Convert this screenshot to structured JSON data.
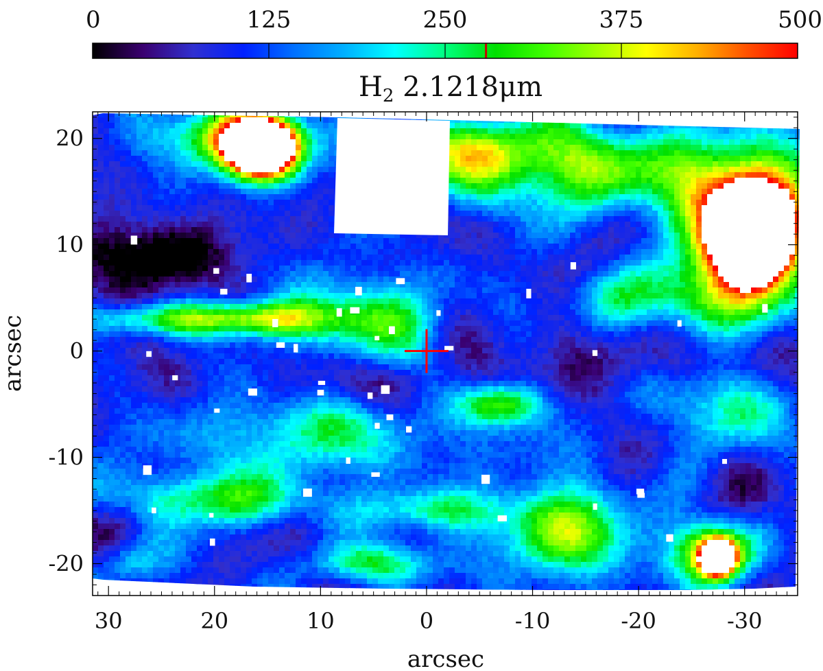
{
  "chart_data": {
    "type": "heatmap",
    "title": "H",
    "title_subscript": "2",
    "title_suffix": " 2.1218μm",
    "xlabel": "arcsec",
    "ylabel": "arcsec",
    "xlim": [
      31.5,
      -35
    ],
    "ylim": [
      -23,
      22.5
    ],
    "x_ticks": [
      30,
      20,
      10,
      0,
      -10,
      -20,
      -30
    ],
    "x_tick_labels": [
      "30",
      "20",
      "10",
      "0",
      "-10",
      "-20",
      "-30"
    ],
    "y_ticks": [
      20,
      10,
      0,
      -10,
      -20
    ],
    "y_tick_labels": [
      "20",
      "10",
      "0",
      "-10",
      "-20"
    ],
    "colorbar": {
      "range": [
        0,
        500
      ],
      "ticks": [
        0,
        125,
        250,
        375,
        500
      ],
      "tick_labels": [
        "0",
        "125",
        "250",
        "375",
        "500"
      ],
      "colormap": [
        "#000000",
        "#3a0070",
        "#3030d0",
        "#0020ff",
        "#0070ff",
        "#00b0ff",
        "#00ffff",
        "#00ff80",
        "#00e000",
        "#40ff00",
        "#a0ff00",
        "#ffff00",
        "#ffb000",
        "#ff5000",
        "#ff0000"
      ],
      "marker_value": 279
    },
    "marker": {
      "type": "cross",
      "x": 0,
      "y": 0,
      "color": "#ff0000"
    },
    "saturated_color": "#ffffff",
    "masked_region": {
      "x": [
        8.8,
        -1.8
      ],
      "y": [
        10.7,
        22.5
      ]
    },
    "emission_features": [
      {
        "x": 17,
        "y": 20,
        "sx": 6,
        "sy": 3,
        "v": 360
      },
      {
        "x": 15.5,
        "y": 19,
        "sx": 3,
        "sy": 2.5,
        "v": 700
      },
      {
        "x": -30,
        "y": 12,
        "sx": 6,
        "sy": 7,
        "v": 420
      },
      {
        "x": -31,
        "y": 11,
        "sx": 3.5,
        "sy": 4,
        "v": 650
      },
      {
        "x": -15,
        "y": 17,
        "sx": 14,
        "sy": 4,
        "v": 210
      },
      {
        "x": -5,
        "y": 19,
        "sx": 8,
        "sy": 3,
        "v": 180
      },
      {
        "x": 22,
        "y": 3,
        "sx": 12,
        "sy": 1.5,
        "v": 200
      },
      {
        "x": 15,
        "y": 3,
        "sx": 5,
        "sy": 2,
        "v": 170
      },
      {
        "x": 5,
        "y": 3,
        "sx": 6,
        "sy": 4,
        "v": 170
      },
      {
        "x": -13,
        "y": -17,
        "sx": 6,
        "sy": 4,
        "v": 240
      },
      {
        "x": -27,
        "y": -19,
        "sx": 4,
        "sy": 3,
        "v": 330
      },
      {
        "x": -27.5,
        "y": -19.5,
        "sx": 1.5,
        "sy": 1.5,
        "v": 620
      },
      {
        "x": -7,
        "y": -5,
        "sx": 4,
        "sy": 2,
        "v": 220
      },
      {
        "x": 20,
        "y": -14,
        "sx": 10,
        "sy": 2.5,
        "v": 180
      },
      {
        "x": 5,
        "y": -20,
        "sx": 6,
        "sy": 2,
        "v": 180
      },
      {
        "x": 10,
        "y": -8,
        "sx": 12,
        "sy": 4,
        "v": 150
      },
      {
        "x": -28,
        "y": -5,
        "sx": 6,
        "sy": 4,
        "v": 150
      },
      {
        "x": -22,
        "y": 5,
        "sx": 10,
        "sy": 3,
        "v": 150
      },
      {
        "x": 0,
        "y": -15,
        "sx": 8,
        "sy": 2,
        "v": 140
      },
      {
        "x": 28,
        "y": -20,
        "sx": 3,
        "sy": 2,
        "v": 90
      }
    ],
    "dark_features": [
      {
        "x": 27,
        "y": 9,
        "sx": 10,
        "sy": 3,
        "v": 100
      },
      {
        "x": 5,
        "y": -3,
        "sx": 10,
        "sy": 2.5,
        "v": 60
      },
      {
        "x": -25,
        "y": -1,
        "sx": 12,
        "sy": 3,
        "v": 60
      },
      {
        "x": 28,
        "y": -16,
        "sx": 3,
        "sy": 3,
        "v": 90
      }
    ],
    "background_level": 95
  }
}
